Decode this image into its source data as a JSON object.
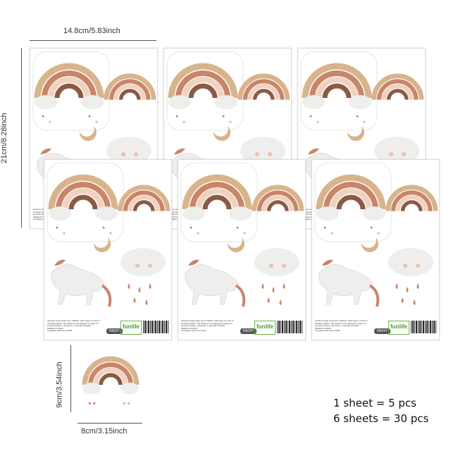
{
  "dimensions": {
    "sheet_width": "14.8cm/5.83inch",
    "sheet_height": "21cm/8.28inch",
    "sticker_height": "9cm/3.54inch",
    "sticker_width": "8cm/3.15inch"
  },
  "sheet": {
    "warning": "warning: Keep away from children under age of 3 due to choking hazard. The sticker is only allowed to apply on smooth surface, otherwise, it may fall off easily.",
    "made_in": "MADE IN CHINA",
    "copyright": "Copyright owned by funlife",
    "code": "PA247",
    "logo": "funlife"
  },
  "quantity": {
    "per_sheet": "1 sheet = 5 pcs",
    "total": "6 sheets = 30 pcs"
  },
  "colors": {
    "band1": "#d8b48c",
    "band2": "#c98568",
    "band3": "#efd2c0",
    "band4": "#8c5a44",
    "cloud": "#eeeeec"
  }
}
